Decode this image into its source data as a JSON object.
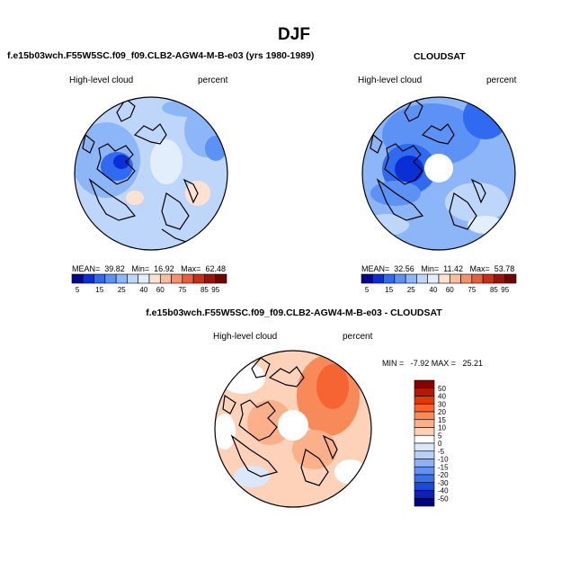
{
  "season": "DJF",
  "panels": {
    "model": {
      "title": "f.e15b03wch.F55W5SC.f09_f09.CLB2-AGW4-M-B-e03 (yrs 1980-1989)",
      "variable": "High-level cloud",
      "units": "percent",
      "mean_label": "MEAN=",
      "mean": "39.82",
      "min_label": "Min=",
      "min": "16.92",
      "max_label": "Max=",
      "max": "62.48"
    },
    "obs": {
      "title": "CLOUDSAT",
      "variable": "High-level cloud",
      "units": "percent",
      "mean_label": "MEAN=",
      "mean": "32.56",
      "min_label": "Min=",
      "min": "11.42",
      "max_label": "Max=",
      "max": "53.78"
    },
    "diff": {
      "title": "f.e15b03wch.F55W5SC.f09_f09.CLB2-AGW4-M-B-e03 - CLOUDSAT",
      "variable": "High-level cloud",
      "units": "percent",
      "stats": "MIN =   -7.92 MAX =   25.21"
    }
  },
  "abs_colorbar": {
    "colors": [
      "#06068c",
      "#0b2fd6",
      "#2f6af0",
      "#5c91f5",
      "#8db6f8",
      "#bfd6fb",
      "#e3eefd",
      "#fde2d2",
      "#f8bd9f",
      "#f3916e",
      "#e6603d",
      "#c82f14",
      "#9c1305",
      "#700303"
    ],
    "labels": [
      "5",
      "15",
      "25",
      "40",
      "60",
      "75",
      "85",
      "95"
    ]
  },
  "diff_colorbar": {
    "colors": [
      "#8a0000",
      "#b51a00",
      "#e0380b",
      "#f56432",
      "#f88a5a",
      "#fbb08a",
      "#fdd2b8",
      "#ffffff",
      "#dbe8fb",
      "#b8cff7",
      "#8fb0f3",
      "#6690ef",
      "#3c6fe8",
      "#1c49d8",
      "#0b22b4",
      "#000080"
    ],
    "labels": [
      "50",
      "40",
      "30",
      "20",
      "15",
      "10",
      "5",
      "0",
      "-5",
      "-10",
      "-15",
      "-20",
      "-30",
      "-40",
      "-50"
    ]
  }
}
